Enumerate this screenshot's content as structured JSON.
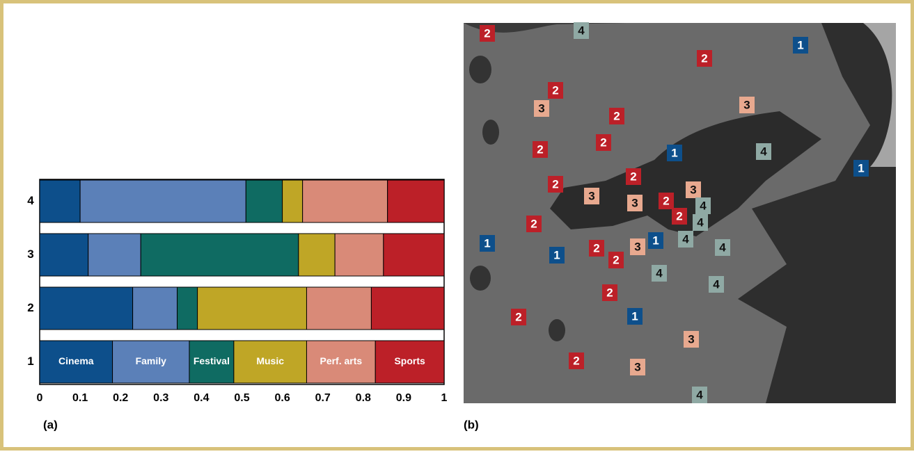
{
  "chart_data": {
    "type": "stacked-barh",
    "categories": [
      "1",
      "2",
      "3",
      "4"
    ],
    "series": [
      {
        "name": "Cinema",
        "color": "#0d4f8b",
        "values": [
          0.18,
          0.23,
          0.12,
          0.1
        ]
      },
      {
        "name": "Family",
        "color": "#5b80b8",
        "values": [
          0.19,
          0.11,
          0.13,
          0.41
        ]
      },
      {
        "name": "Festival",
        "color": "#0f6b62",
        "values": [
          0.11,
          0.05,
          0.39,
          0.09
        ]
      },
      {
        "name": "Music",
        "color": "#bfa626",
        "values": [
          0.18,
          0.27,
          0.09,
          0.05
        ]
      },
      {
        "name": "Perf. arts",
        "color": "#d98a78",
        "values": [
          0.17,
          0.16,
          0.12,
          0.21
        ]
      },
      {
        "name": "Sports",
        "color": "#bc2028",
        "values": [
          0.17,
          0.18,
          0.15,
          0.14
        ]
      }
    ],
    "xlim": [
      0,
      1
    ],
    "xticks": [
      0,
      0.1,
      0.2,
      0.3,
      0.4,
      0.5,
      0.6,
      0.7,
      0.8,
      0.9,
      1
    ],
    "panel_label": "(a)"
  },
  "map": {
    "panel_label": "(b)",
    "marker_colors": {
      "1": "#0d4f8b",
      "2": "#bc2028",
      "3": "#e8a98f",
      "4": "#8fa9a4"
    },
    "markers": [
      "2",
      "4",
      "1",
      "2",
      "2",
      "3",
      "3",
      "2",
      "2",
      "2",
      "1",
      "4",
      "1",
      "2",
      "2",
      "3",
      "3",
      "3",
      "2",
      "4",
      "2",
      "4",
      "2",
      "1",
      "1",
      "4",
      "4",
      "2",
      "3",
      "1",
      "2",
      "4",
      "4",
      "2",
      "1",
      "2",
      "3",
      "2",
      "3",
      "4"
    ]
  }
}
